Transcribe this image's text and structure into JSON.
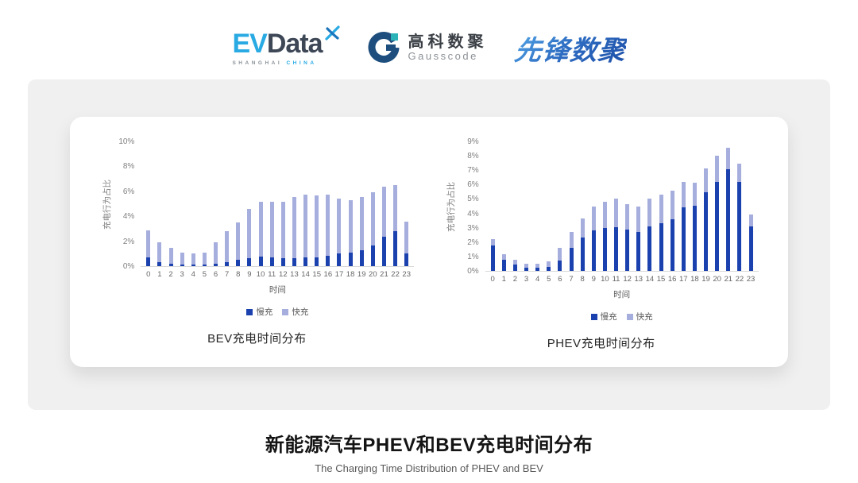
{
  "header": {
    "evdata": {
      "ev": "EV",
      "data": "Data",
      "sub_left": "SHANGHAI",
      "sub_right": "CHINA"
    },
    "gausscode": {
      "name_cn": "高科数聚",
      "name_en": "Gausscode"
    },
    "pioneer": {
      "name": "先锋数聚"
    }
  },
  "colors": {
    "slow_charge": "#1b41ae",
    "fast_charge": "#a6aedd",
    "panel_gray": "#f0f0f0"
  },
  "chart_data": [
    {
      "type": "bar",
      "stacked": true,
      "caption": "BEV充电时间分布",
      "xlabel": "时间",
      "ylabel": "充电行为占比",
      "ylim": [
        0,
        10
      ],
      "ytick_step": 2,
      "ytick_suffix": "%",
      "grid": false,
      "legend_position": "bottom",
      "categories": [
        "0",
        "1",
        "2",
        "3",
        "4",
        "5",
        "6",
        "7",
        "8",
        "9",
        "10",
        "11",
        "12",
        "13",
        "14",
        "15",
        "16",
        "17",
        "18",
        "19",
        "20",
        "21",
        "22",
        "23"
      ],
      "series": [
        {
          "name": "慢充",
          "color": "#1b41ae",
          "values": [
            0.7,
            0.35,
            0.2,
            0.1,
            0.1,
            0.1,
            0.2,
            0.35,
            0.5,
            0.65,
            0.75,
            0.7,
            0.65,
            0.65,
            0.7,
            0.7,
            0.8,
            1.0,
            1.1,
            1.3,
            1.65,
            2.35,
            2.8,
            1.0
          ]
        },
        {
          "name": "快充",
          "color": "#a6aedd",
          "values": [
            2.2,
            1.55,
            1.3,
            1.0,
            0.9,
            1.0,
            1.7,
            2.45,
            3.0,
            3.95,
            4.4,
            4.45,
            4.5,
            4.9,
            5.05,
            5.0,
            4.95,
            4.4,
            4.2,
            4.25,
            4.25,
            4.05,
            3.7,
            2.6
          ]
        }
      ]
    },
    {
      "type": "bar",
      "stacked": true,
      "caption": "PHEV充电时间分布",
      "xlabel": "时间",
      "ylabel": "充电行为占比",
      "ylim": [
        0,
        9
      ],
      "ytick_step": 1,
      "ytick_suffix": "%",
      "grid": false,
      "legend_position": "bottom",
      "categories": [
        "0",
        "1",
        "2",
        "3",
        "4",
        "5",
        "6",
        "7",
        "8",
        "9",
        "10",
        "11",
        "12",
        "13",
        "14",
        "15",
        "16",
        "17",
        "18",
        "19",
        "20",
        "21",
        "22",
        "23"
      ],
      "series": [
        {
          "name": "慢充",
          "color": "#1b41ae",
          "values": [
            1.75,
            0.75,
            0.45,
            0.25,
            0.25,
            0.3,
            0.7,
            1.6,
            2.3,
            2.8,
            3.0,
            3.05,
            2.85,
            2.7,
            3.1,
            3.3,
            3.6,
            4.4,
            4.55,
            5.45,
            6.2,
            7.05,
            6.2,
            3.1
          ]
        },
        {
          "name": "快充",
          "color": "#a6aedd",
          "values": [
            0.45,
            0.4,
            0.3,
            0.25,
            0.25,
            0.35,
            0.9,
            1.1,
            1.35,
            1.7,
            1.8,
            2.0,
            1.8,
            1.8,
            1.95,
            2.0,
            2.0,
            1.8,
            1.6,
            1.7,
            1.8,
            1.5,
            1.25,
            0.8
          ]
        }
      ]
    }
  ],
  "footer": {
    "title": "新能源汽车PHEV和BEV充电时间分布",
    "subtitle": "The Charging Time Distribution of PHEV and BEV"
  }
}
